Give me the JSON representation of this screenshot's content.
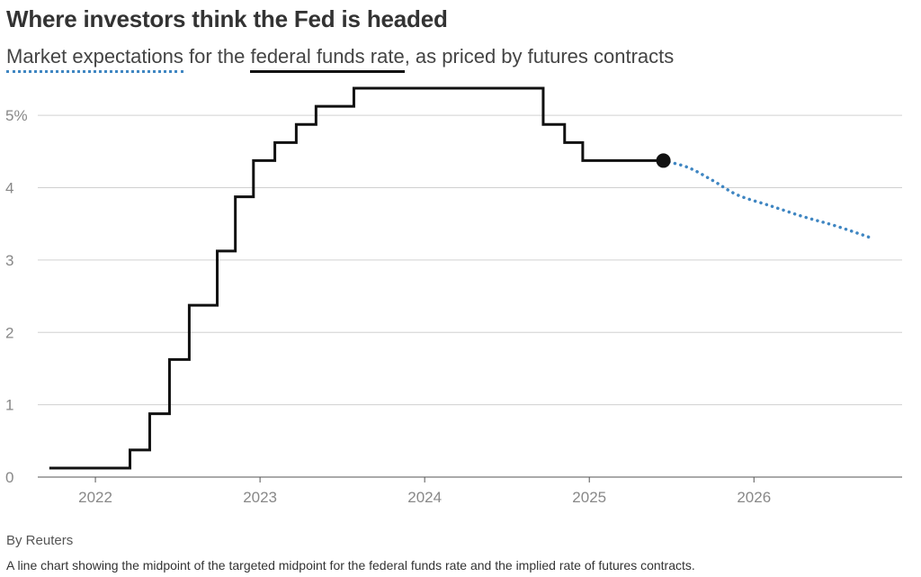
{
  "title": "Where investors think the Fed is headed",
  "subtitle": {
    "legend_expectations": "Market expectations",
    "text_middle": " for the ",
    "legend_fed": "federal funds rate",
    "text_end": ", as priced by futures contracts"
  },
  "credit": "By Reuters",
  "description": "A line chart showing the midpoint of the targeted midpoint for the federal funds rate and the implied rate of futures contracts.",
  "colors": {
    "fed_line": "#111111",
    "expectations": "#3f86c2",
    "grid": "#d0d0d0",
    "axis_text": "#888888"
  },
  "chart_data": {
    "type": "line",
    "title": "Where investors think the Fed is headed",
    "xlabel": "",
    "ylabel": "",
    "xlim": [
      2021.65,
      2026.9
    ],
    "ylim": [
      0,
      5.5
    ],
    "grid": true,
    "y_ticks": [
      {
        "value": 0,
        "label": "0"
      },
      {
        "value": 1,
        "label": "1"
      },
      {
        "value": 2,
        "label": "2"
      },
      {
        "value": 3,
        "label": "3"
      },
      {
        "value": 4,
        "label": "4"
      },
      {
        "value": 5,
        "label": "5%"
      }
    ],
    "x_ticks": [
      {
        "value": 2022,
        "label": "2022"
      },
      {
        "value": 2023,
        "label": "2023"
      },
      {
        "value": 2024,
        "label": "2024"
      },
      {
        "value": 2025,
        "label": "2025"
      },
      {
        "value": 2026,
        "label": "2026"
      }
    ],
    "series": [
      {
        "name": "federal funds rate",
        "style": "step",
        "points": [
          [
            2021.72,
            0.125
          ],
          [
            2022.21,
            0.375
          ],
          [
            2022.33,
            0.875
          ],
          [
            2022.45,
            1.625
          ],
          [
            2022.57,
            2.375
          ],
          [
            2022.74,
            3.125
          ],
          [
            2022.85,
            3.875
          ],
          [
            2022.96,
            4.375
          ],
          [
            2023.09,
            4.625
          ],
          [
            2023.22,
            4.875
          ],
          [
            2023.34,
            5.125
          ],
          [
            2023.57,
            5.375
          ],
          [
            2024.72,
            4.875
          ],
          [
            2024.85,
            4.625
          ],
          [
            2024.96,
            4.375
          ],
          [
            2025.45,
            4.375
          ]
        ],
        "end_marker": true
      },
      {
        "name": "Market expectations",
        "style": "dotted",
        "points": [
          [
            2025.45,
            4.375
          ],
          [
            2025.6,
            4.28
          ],
          [
            2025.75,
            4.1
          ],
          [
            2025.9,
            3.9
          ],
          [
            2026.1,
            3.75
          ],
          [
            2026.3,
            3.6
          ],
          [
            2026.5,
            3.47
          ],
          [
            2026.72,
            3.3
          ]
        ]
      }
    ]
  }
}
